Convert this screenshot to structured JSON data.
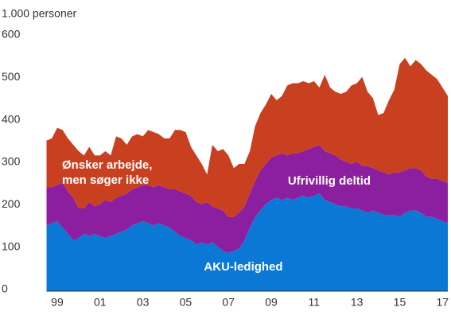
{
  "chart_data": {
    "type": "stacked-area",
    "y_label": "1.000 personer",
    "x": [
      1999,
      1999.25,
      1999.5,
      1999.75,
      2000,
      2000.25,
      2000.5,
      2000.75,
      2001,
      2001.25,
      2001.5,
      2001.75,
      2002,
      2002.25,
      2002.5,
      2002.75,
      2003,
      2003.25,
      2003.5,
      2003.75,
      2004,
      2004.25,
      2004.5,
      2004.75,
      2005,
      2005.25,
      2005.5,
      2005.75,
      2006,
      2006.25,
      2006.5,
      2006.75,
      2007,
      2007.25,
      2007.5,
      2007.75,
      2008,
      2008.25,
      2008.5,
      2008.75,
      2009,
      2009.25,
      2009.5,
      2009.75,
      2010,
      2010.25,
      2010.5,
      2010.75,
      2011,
      2011.25,
      2011.5,
      2011.75,
      2012,
      2012.25,
      2012.5,
      2012.75,
      2013,
      2013.25,
      2013.5,
      2013.75,
      2014,
      2014.25,
      2014.5,
      2014.75,
      2015,
      2015.25,
      2015.5,
      2015.75,
      2016,
      2016.25,
      2016.5,
      2016.75,
      2017,
      2017.25,
      2017.5,
      2017.75
    ],
    "series": [
      {
        "name": "AKU-ledighed",
        "color": "#0b78d6",
        "values": [
          155,
          160,
          165,
          150,
          135,
          120,
          125,
          135,
          130,
          135,
          130,
          125,
          130,
          135,
          140,
          145,
          155,
          160,
          165,
          160,
          155,
          160,
          155,
          150,
          140,
          130,
          125,
          120,
          110,
          115,
          110,
          115,
          105,
          95,
          90,
          95,
          100,
          120,
          150,
          175,
          190,
          205,
          215,
          220,
          215,
          220,
          215,
          220,
          225,
          220,
          225,
          230,
          215,
          210,
          205,
          200,
          200,
          195,
          195,
          190,
          185,
          190,
          185,
          180,
          180,
          180,
          175,
          185,
          190,
          190,
          185,
          175,
          175,
          170,
          165,
          160
        ]
      },
      {
        "name": "Ufrivillig deltid",
        "color": "#8c1fa0",
        "values": [
          90,
          85,
          85,
          105,
          100,
          100,
          70,
          60,
          80,
          65,
          75,
          90,
          80,
          85,
          85,
          85,
          85,
          85,
          85,
          90,
          90,
          90,
          90,
          90,
          100,
          105,
          105,
          105,
          100,
          90,
          100,
          85,
          90,
          95,
          85,
          80,
          85,
          80,
          80,
          85,
          95,
          95,
          100,
          100,
          110,
          100,
          110,
          105,
          105,
          115,
          115,
          115,
          115,
          115,
          115,
          110,
          105,
          105,
          110,
          105,
          110,
          100,
          100,
          100,
          95,
          100,
          105,
          100,
          100,
          100,
          100,
          95,
          90,
          95,
          95,
          95
        ]
      },
      {
        "name": "Ønsker arbejde, men søger ikke",
        "color": "#c8401f",
        "values": [
          110,
          115,
          135,
          125,
          125,
          125,
          135,
          125,
          130,
          120,
          115,
          115,
          110,
          145,
          135,
          115,
          125,
          125,
          115,
          130,
          130,
          120,
          115,
          120,
          140,
          145,
          145,
          115,
          110,
          95,
          65,
          145,
          135,
          145,
          145,
          115,
          115,
          100,
          100,
          130,
          135,
          140,
          150,
          130,
          135,
          165,
          165,
          165,
          165,
          155,
          155,
          135,
          180,
          155,
          150,
          155,
          165,
          185,
          185,
          210,
          175,
          165,
          130,
          140,
          175,
          195,
          255,
          265,
          240,
          255,
          250,
          250,
          245,
          235,
          220,
          205
        ]
      }
    ],
    "annotations": [
      "Ønsker arbejde,",
      "men søger ikke",
      "Ufrivillig deltid",
      "AKU-ledighed"
    ],
    "xlim": [
      1999,
      2017.75
    ],
    "xticks": [
      {
        "value": 1999.5,
        "label": "99"
      },
      {
        "value": 2001.5,
        "label": "01"
      },
      {
        "value": 2003.5,
        "label": "03"
      },
      {
        "value": 2005.5,
        "label": "05"
      },
      {
        "value": 2007.5,
        "label": "07"
      },
      {
        "value": 2009.5,
        "label": "09"
      },
      {
        "value": 2011.5,
        "label": "11"
      },
      {
        "value": 2013.5,
        "label": "13"
      },
      {
        "value": 2015.5,
        "label": "15"
      },
      {
        "value": 2017.5,
        "label": "17"
      }
    ],
    "ylim": [
      0,
      600
    ],
    "yticks": [
      0,
      100,
      200,
      300,
      400,
      500,
      600
    ]
  }
}
